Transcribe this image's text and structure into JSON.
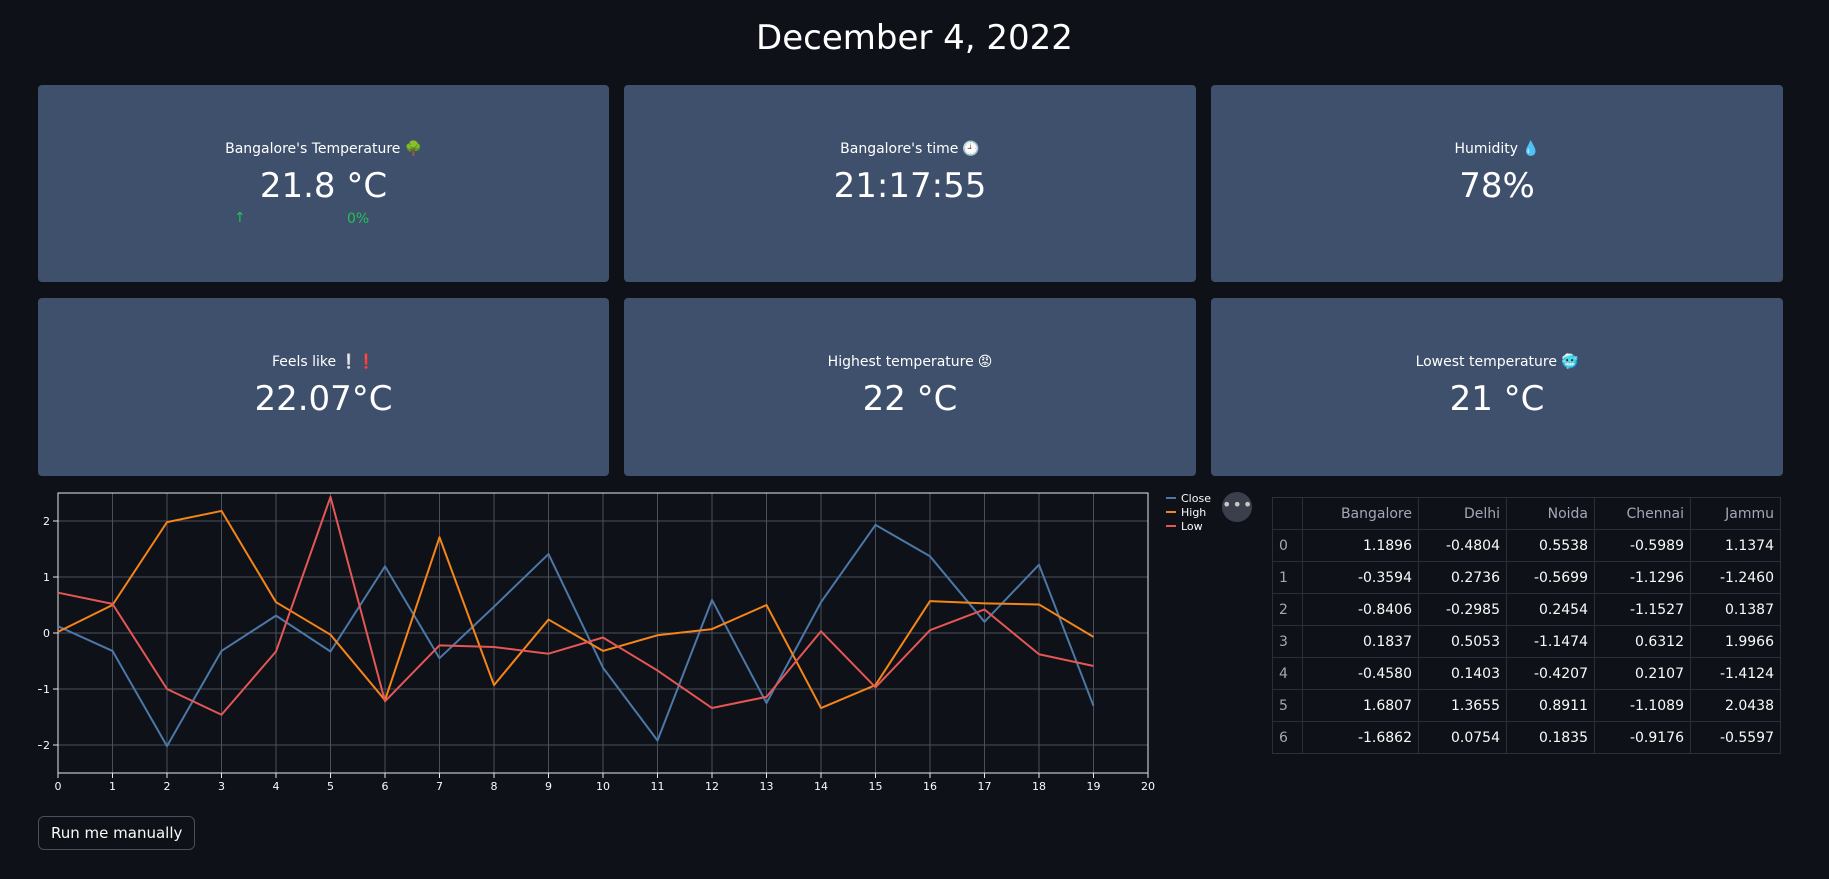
{
  "header": {
    "date": "December 4, 2022"
  },
  "metrics": [
    {
      "label": "Bangalore's Temperature",
      "icon": "tree-icon",
      "emoji": "🌳",
      "value": "21.8 °C",
      "delta": "0%",
      "delta_color": "#21c354"
    },
    {
      "label": "Bangalore's time",
      "icon": "clock-icon",
      "emoji": "🕘",
      "value": "21:17:55"
    },
    {
      "label": "Humidity",
      "icon": "droplet-icon",
      "emoji": "💧",
      "value": "78%"
    },
    {
      "label": "Feels like",
      "icon": "exclamation-icon",
      "emoji": "❕❗",
      "value": "22.07°C"
    },
    {
      "label": "Highest temperature",
      "icon": "angry-face-icon",
      "emoji": "😡",
      "value": "22 °C"
    },
    {
      "label": "Lowest temperature",
      "icon": "cold-face-icon",
      "emoji": "🥶",
      "value": "21 °C"
    }
  ],
  "colors": {
    "background": "#0e1117",
    "card": "#3f506c",
    "close": "#4c78a8",
    "high": "#f58518",
    "low": "#e45756",
    "delta_positive": "#21c354"
  },
  "chart_data": {
    "type": "line",
    "x": [
      0,
      1,
      2,
      3,
      4,
      5,
      6,
      7,
      8,
      9,
      10,
      11,
      12,
      13,
      14,
      15,
      16,
      17,
      18,
      19
    ],
    "xlim": [
      0,
      20
    ],
    "ylim": [
      -2.5,
      2.5
    ],
    "x_ticks": [
      "0",
      "1",
      "2",
      "3",
      "4",
      "5",
      "6",
      "7",
      "8",
      "9",
      "10",
      "11",
      "12",
      "13",
      "14",
      "15",
      "16",
      "17",
      "18",
      "19",
      "20"
    ],
    "y_ticks": [
      "2",
      "1",
      "0",
      "−1",
      "−2"
    ],
    "y_tick_values": [
      2,
      1,
      0,
      -1,
      -2
    ],
    "grid": true,
    "legend_position": "top-right",
    "series": [
      {
        "name": "Close",
        "color": "#4c78a8",
        "values": [
          0.12,
          -0.32,
          -2.02,
          -0.32,
          0.31,
          -0.33,
          1.19,
          -0.45,
          0.47,
          1.41,
          -0.62,
          -1.92,
          0.59,
          -1.25,
          0.55,
          1.93,
          1.37,
          0.2,
          1.22,
          -1.3
        ]
      },
      {
        "name": "High",
        "color": "#f58518",
        "values": [
          0.02,
          0.5,
          1.98,
          2.18,
          0.55,
          -0.03,
          -1.2,
          1.71,
          -0.93,
          0.24,
          -0.32,
          -0.04,
          0.07,
          0.5,
          -1.34,
          -0.93,
          0.57,
          0.53,
          0.51,
          -0.07
        ]
      },
      {
        "name": "Low",
        "color": "#e45756",
        "values": [
          0.72,
          0.52,
          -1,
          -1.46,
          -0.33,
          2.43,
          -1.22,
          -0.22,
          -0.25,
          -0.37,
          -0.08,
          -0.67,
          -1.34,
          -1.14,
          0.03,
          -0.97,
          0.05,
          0.42,
          -0.38,
          -0.59
        ]
      }
    ]
  },
  "table": {
    "columns": [
      "",
      "Bangalore",
      "Delhi",
      "Noida",
      "Chennai",
      "Jammu"
    ],
    "rows": [
      [
        "0",
        "1.1896",
        "-0.4804",
        "0.5538",
        "-0.5989",
        "1.1374"
      ],
      [
        "1",
        "-0.3594",
        "0.2736",
        "-0.5699",
        "-1.1296",
        "-1.2460"
      ],
      [
        "2",
        "-0.8406",
        "-0.2985",
        "0.2454",
        "-1.1527",
        "0.1387"
      ],
      [
        "3",
        "0.1837",
        "0.5053",
        "-1.1474",
        "0.6312",
        "1.9966"
      ],
      [
        "4",
        "-0.4580",
        "0.1403",
        "-0.4207",
        "0.2107",
        "-1.4124"
      ],
      [
        "5",
        "1.6807",
        "1.3655",
        "0.8911",
        "-1.1089",
        "2.0438"
      ],
      [
        "6",
        "-1.6862",
        "0.0754",
        "0.1835",
        "-0.9176",
        "-0.5597"
      ]
    ]
  },
  "controls": {
    "run_button": "Run me manually",
    "more_menu": "•••"
  }
}
